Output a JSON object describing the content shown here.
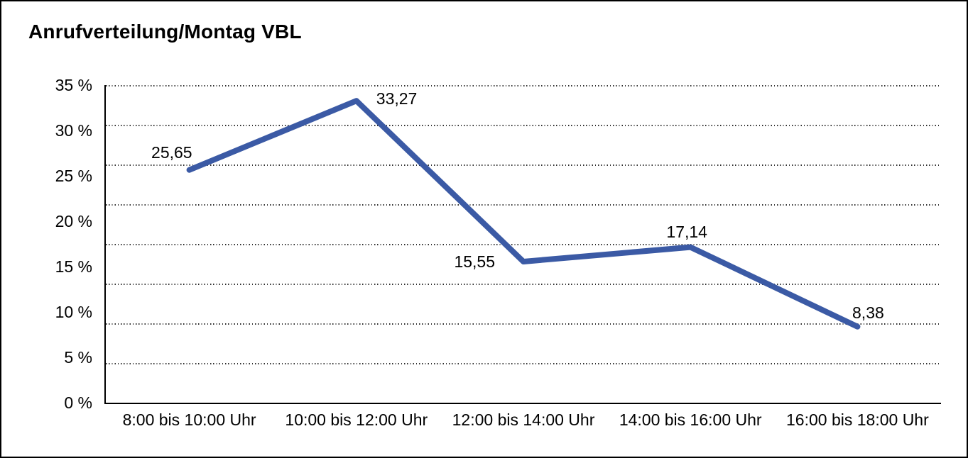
{
  "title": "Anrufverteilung/Montag VBL",
  "chart_data": {
    "type": "line",
    "title": "Anrufverteilung/Montag VBL",
    "categories": [
      "8:00 bis 10:00 Uhr",
      "10:00 bis 12:00 Uhr",
      "12:00 bis 14:00 Uhr",
      "14:00 bis 16:00 Uhr",
      "16:00 bis 18:00 Uhr"
    ],
    "values": [
      25.65,
      33.27,
      15.55,
      17.14,
      8.38
    ],
    "value_labels": [
      "25,65",
      "33,27",
      "15,55",
      "17,14",
      "8,38"
    ],
    "xlabel": "",
    "ylabel": "",
    "ylim": [
      0,
      35
    ],
    "y_ticks": [
      {
        "label": "35 %",
        "value": 35
      },
      {
        "label": "30 %",
        "value": 30
      },
      {
        "label": "25 %",
        "value": 25
      },
      {
        "label": "20 %",
        "value": 20
      },
      {
        "label": "15 %",
        "value": 15
      },
      {
        "label": "10 %",
        "value": 10
      },
      {
        "label": "5 %",
        "value": 5
      },
      {
        "label": "0 %",
        "value": 0
      }
    ],
    "grid": {
      "horizontal": "dotted",
      "intervals": 8,
      "vertical": "none"
    },
    "legend": "none",
    "line_color": "#3B5AA5"
  }
}
